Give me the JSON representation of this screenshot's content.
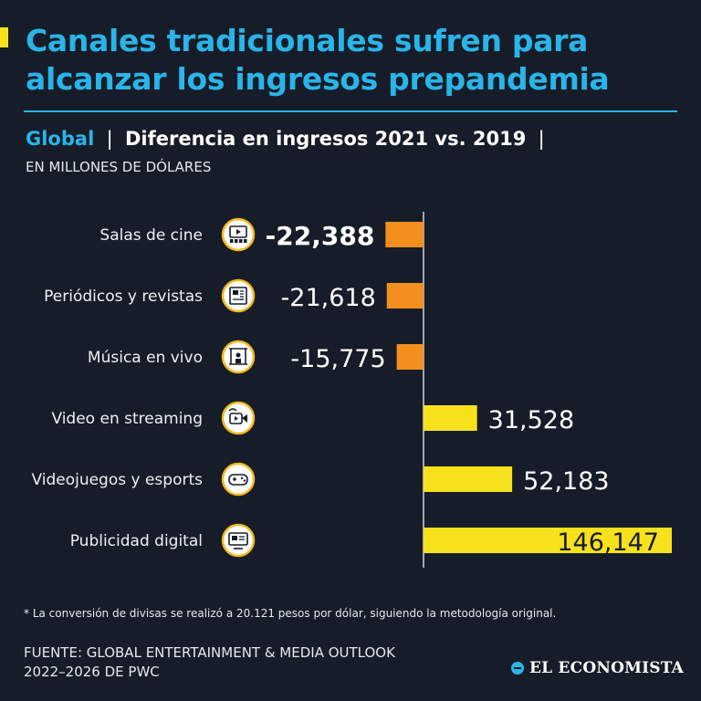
{
  "header": {
    "title": "Canales tradicionales sufren para alcanzar los ingresos prepandemia",
    "region": "Global",
    "separator": "|",
    "subtitle": "Diferencia en ingresos 2021 vs. 2019",
    "unit": "EN MILLONES DE DÓLARES"
  },
  "colors": {
    "background": "#161d29",
    "accent_blue": "#2ab4e8",
    "negative_bar": "#f28f1f",
    "positive_bar": "#f7e11d"
  },
  "chart_data": {
    "type": "bar",
    "orientation": "horizontal",
    "title": "Diferencia en ingresos 2021 vs. 2019",
    "ylabel": "EN MILLONES DE DÓLARES",
    "categories": [
      "Salas de cine",
      "Periódicos y revistas",
      "Música en vivo",
      "Video en streaming",
      "Videojuegos y esports",
      "Publicidad digital"
    ],
    "values": [
      -22388,
      -21618,
      -15775,
      31528,
      52183,
      146147
    ],
    "value_labels": [
      "-22,388",
      "-21,618",
      "-15,775",
      "31,528",
      "52,183",
      "146,147"
    ],
    "icons": [
      "cinema-icon",
      "newspaper-icon",
      "concert-icon",
      "video-streaming-icon",
      "gamepad-icon",
      "digital-ads-icon"
    ],
    "highlighted_index": 0,
    "grid": false,
    "legend": "none"
  },
  "footer": {
    "footnote": "* La conversión de divisas se realizó a 20.121 pesos por dólar, siguiendo la metodología original.",
    "source": "FUENTE: GLOBAL ENTERTAINMENT & MEDIA OUTLOOK 2022–2026 DE PWC",
    "brand": "EL ECONOMISTA"
  }
}
